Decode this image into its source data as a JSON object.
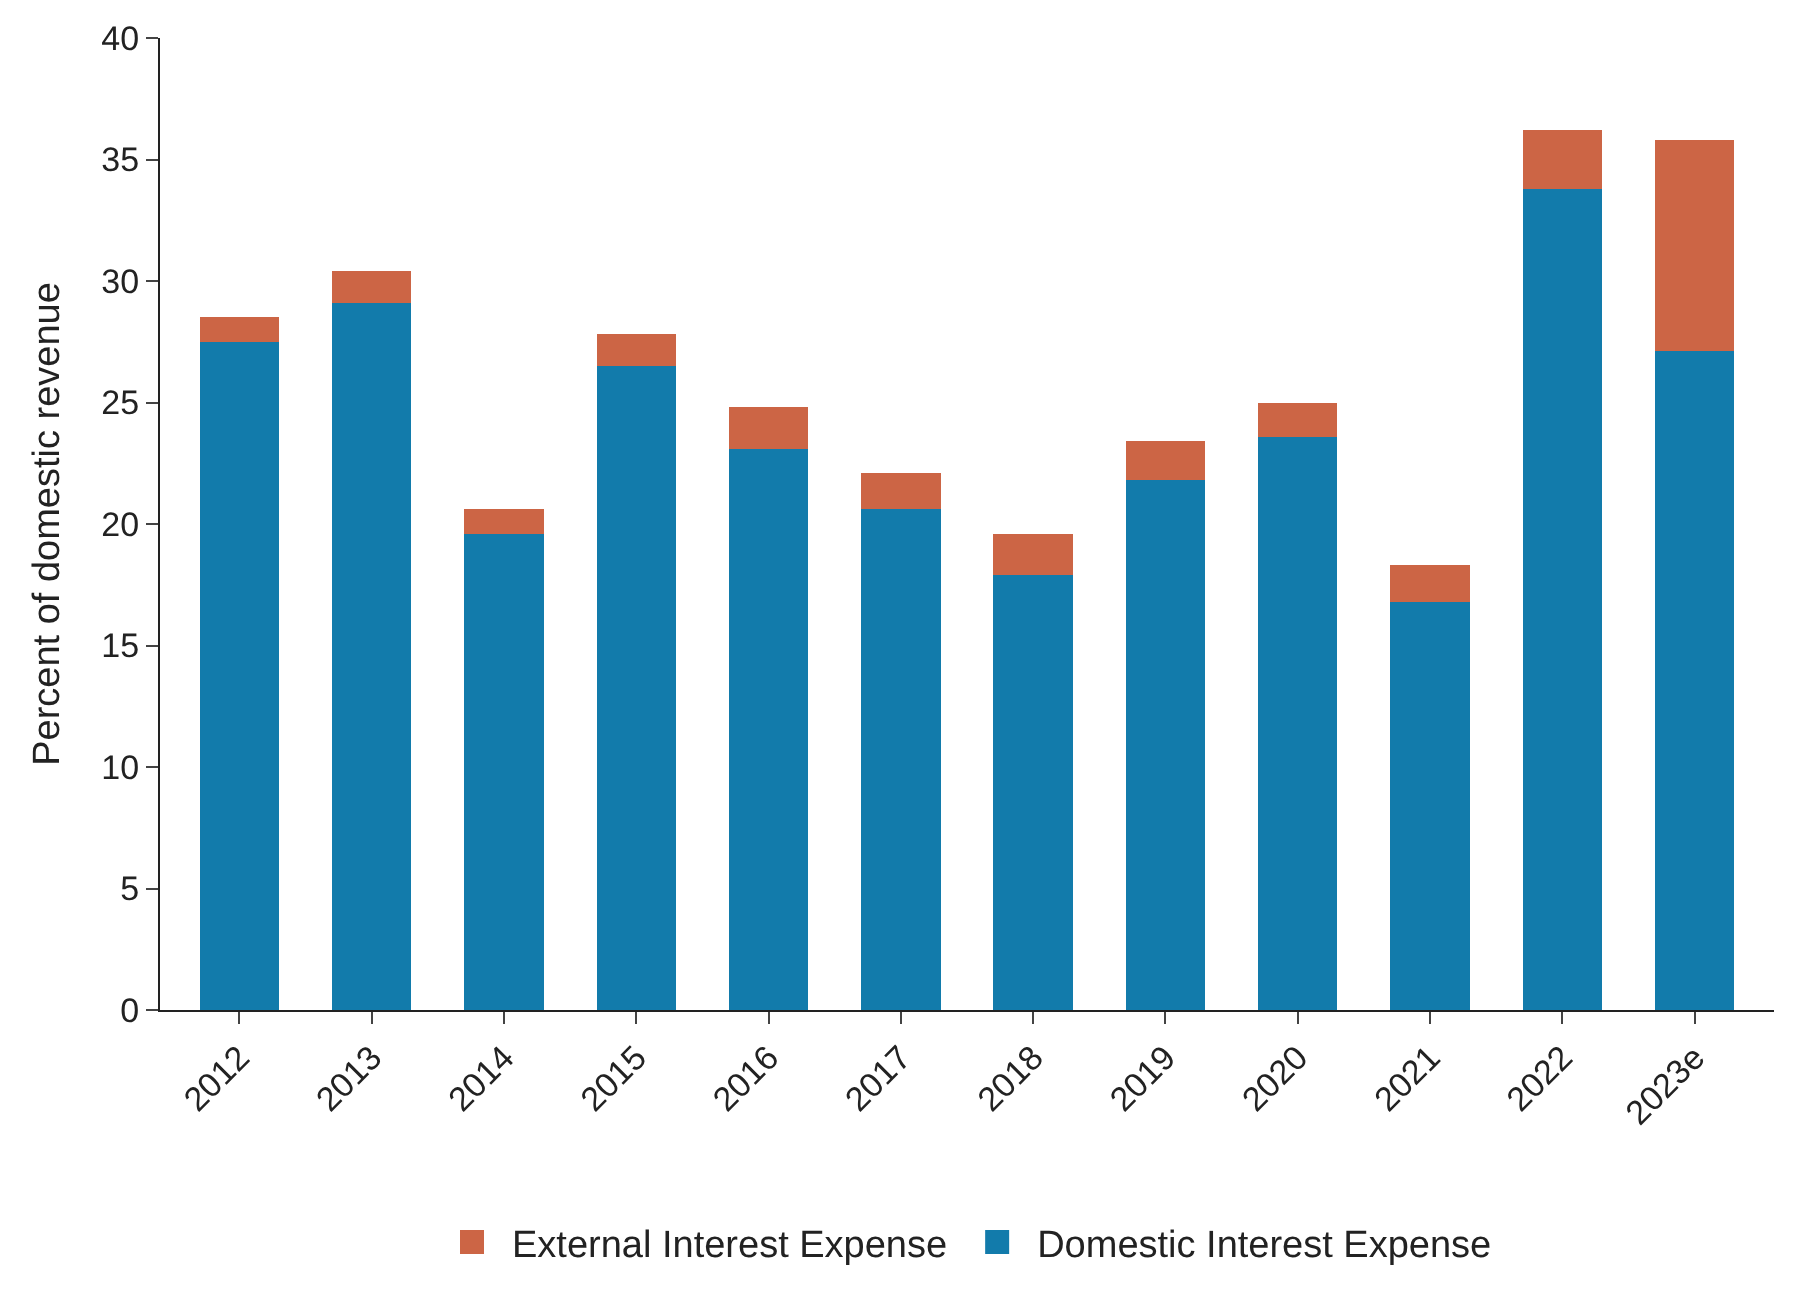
{
  "chart_data": {
    "type": "bar",
    "stacked": true,
    "ylabel": "Percent of domestic revenue",
    "categories": [
      "2012",
      "2013",
      "2014",
      "2015",
      "2016",
      "2017",
      "2018",
      "2019",
      "2020",
      "2021",
      "2022",
      "2023e"
    ],
    "series": [
      {
        "name": "Domestic Interest Expense",
        "color": "#127bab",
        "values": [
          27.5,
          29.1,
          19.6,
          26.5,
          23.1,
          20.6,
          17.9,
          21.8,
          23.6,
          16.8,
          33.8,
          27.1
        ]
      },
      {
        "name": "External Interest Expense",
        "color": "#cc6545",
        "values": [
          1.0,
          1.3,
          1.0,
          1.3,
          1.7,
          1.5,
          1.7,
          1.6,
          1.4,
          1.5,
          2.4,
          8.7
        ]
      }
    ],
    "ylim": [
      0,
      40
    ],
    "yticks": [
      0,
      5,
      10,
      15,
      20,
      25,
      30,
      35,
      40
    ],
    "legend": "bottom"
  }
}
